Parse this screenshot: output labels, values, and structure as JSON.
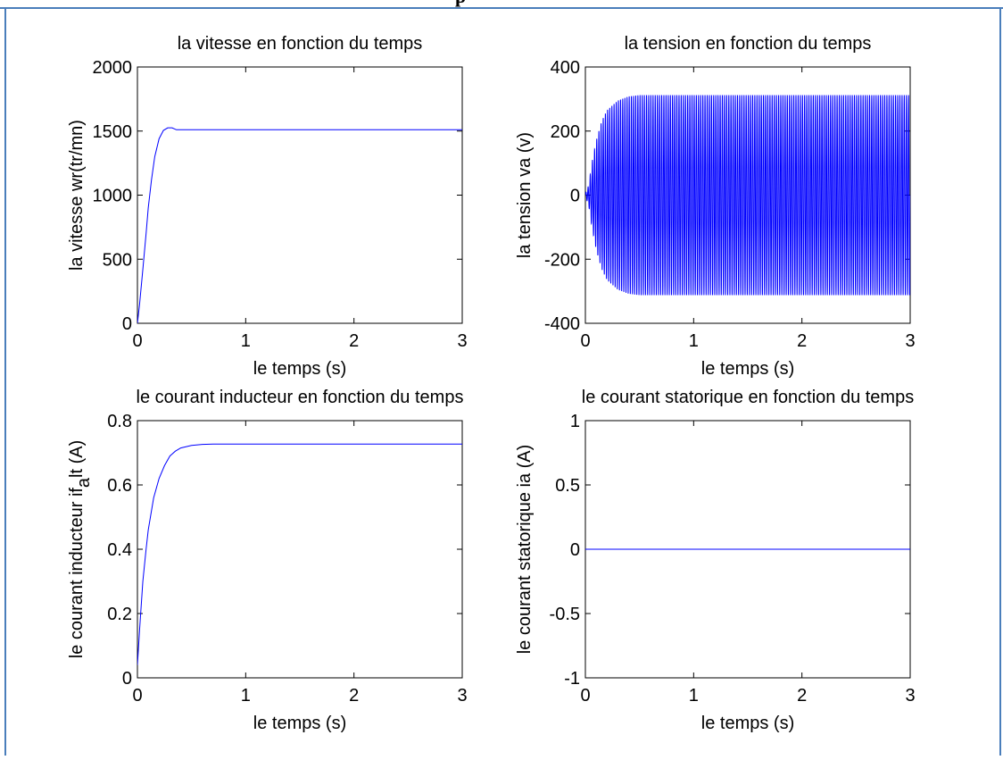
{
  "header_cut_text": "p",
  "colors": {
    "series": "#0000ff",
    "frame_border": "#4a7ebb",
    "axes": "#000000"
  },
  "chart_data": [
    {
      "type": "line",
      "title": "la vitesse en fonction du temps",
      "xlabel": "le temps (s)",
      "ylabel": "la vitesse wr(tr/mn)",
      "xlim": [
        0,
        3
      ],
      "ylim": [
        0,
        2000
      ],
      "xticks": [
        0,
        1,
        2,
        3
      ],
      "yticks": [
        0,
        500,
        1000,
        1500,
        2000
      ],
      "grid": false,
      "series": [
        {
          "x": [
            0,
            0.02,
            0.05,
            0.08,
            0.1,
            0.13,
            0.16,
            0.2,
            0.24,
            0.28,
            0.32,
            0.36,
            0.4,
            0.5,
            1,
            2,
            3
          ],
          "y": [
            0,
            150,
            420,
            700,
            900,
            1120,
            1300,
            1440,
            1505,
            1525,
            1525,
            1510,
            1510,
            1510,
            1510,
            1510,
            1510
          ]
        }
      ]
    },
    {
      "type": "line",
      "title": "la tension en fonction du temps",
      "xlabel": "le temps (s)",
      "ylabel": "la tension va (v)",
      "xlim": [
        0,
        3
      ],
      "ylim": [
        -400,
        400
      ],
      "xticks": [
        0,
        1,
        2,
        3
      ],
      "yticks": [
        -400,
        -200,
        0,
        200,
        400
      ],
      "grid": false,
      "series": [
        {
          "oscillation": true,
          "frequency_hz": 50,
          "amplitude": 312,
          "envelope_x": [
            0,
            0.03,
            0.06,
            0.1,
            0.15,
            0.2,
            0.3,
            0.4,
            0.5,
            3
          ],
          "envelope_y": [
            5,
            30,
            100,
            170,
            230,
            265,
            295,
            308,
            312,
            312
          ]
        }
      ]
    },
    {
      "type": "line",
      "title": "le courant inducteur en fonction du temps",
      "xlabel": "le temps (s)",
      "ylabel": "le courant inducteur  if_alt (A)",
      "xlim": [
        0,
        3
      ],
      "ylim": [
        0,
        0.8
      ],
      "xticks": [
        0,
        1,
        2,
        3
      ],
      "yticks": [
        0,
        0.2,
        0.4,
        0.6,
        0.8
      ],
      "grid": false,
      "series": [
        {
          "x": [
            0,
            0.02,
            0.05,
            0.08,
            0.1,
            0.15,
            0.2,
            0.25,
            0.3,
            0.35,
            0.4,
            0.5,
            0.6,
            0.7,
            1,
            2,
            3
          ],
          "y": [
            0.04,
            0.15,
            0.3,
            0.4,
            0.46,
            0.56,
            0.62,
            0.66,
            0.69,
            0.705,
            0.715,
            0.723,
            0.726,
            0.727,
            0.727,
            0.727,
            0.727
          ]
        }
      ]
    },
    {
      "type": "line",
      "title": "le courant statorique en fonction du temps",
      "xlabel": "le temps (s)",
      "ylabel": "le courant statorique  ia (A)",
      "xlim": [
        0,
        3
      ],
      "ylim": [
        -1,
        1
      ],
      "xticks": [
        0,
        1,
        2,
        3
      ],
      "yticks": [
        -1,
        -0.5,
        0,
        0.5,
        1
      ],
      "grid": false,
      "series": [
        {
          "x": [
            0,
            3
          ],
          "y": [
            0,
            0
          ]
        }
      ]
    }
  ]
}
